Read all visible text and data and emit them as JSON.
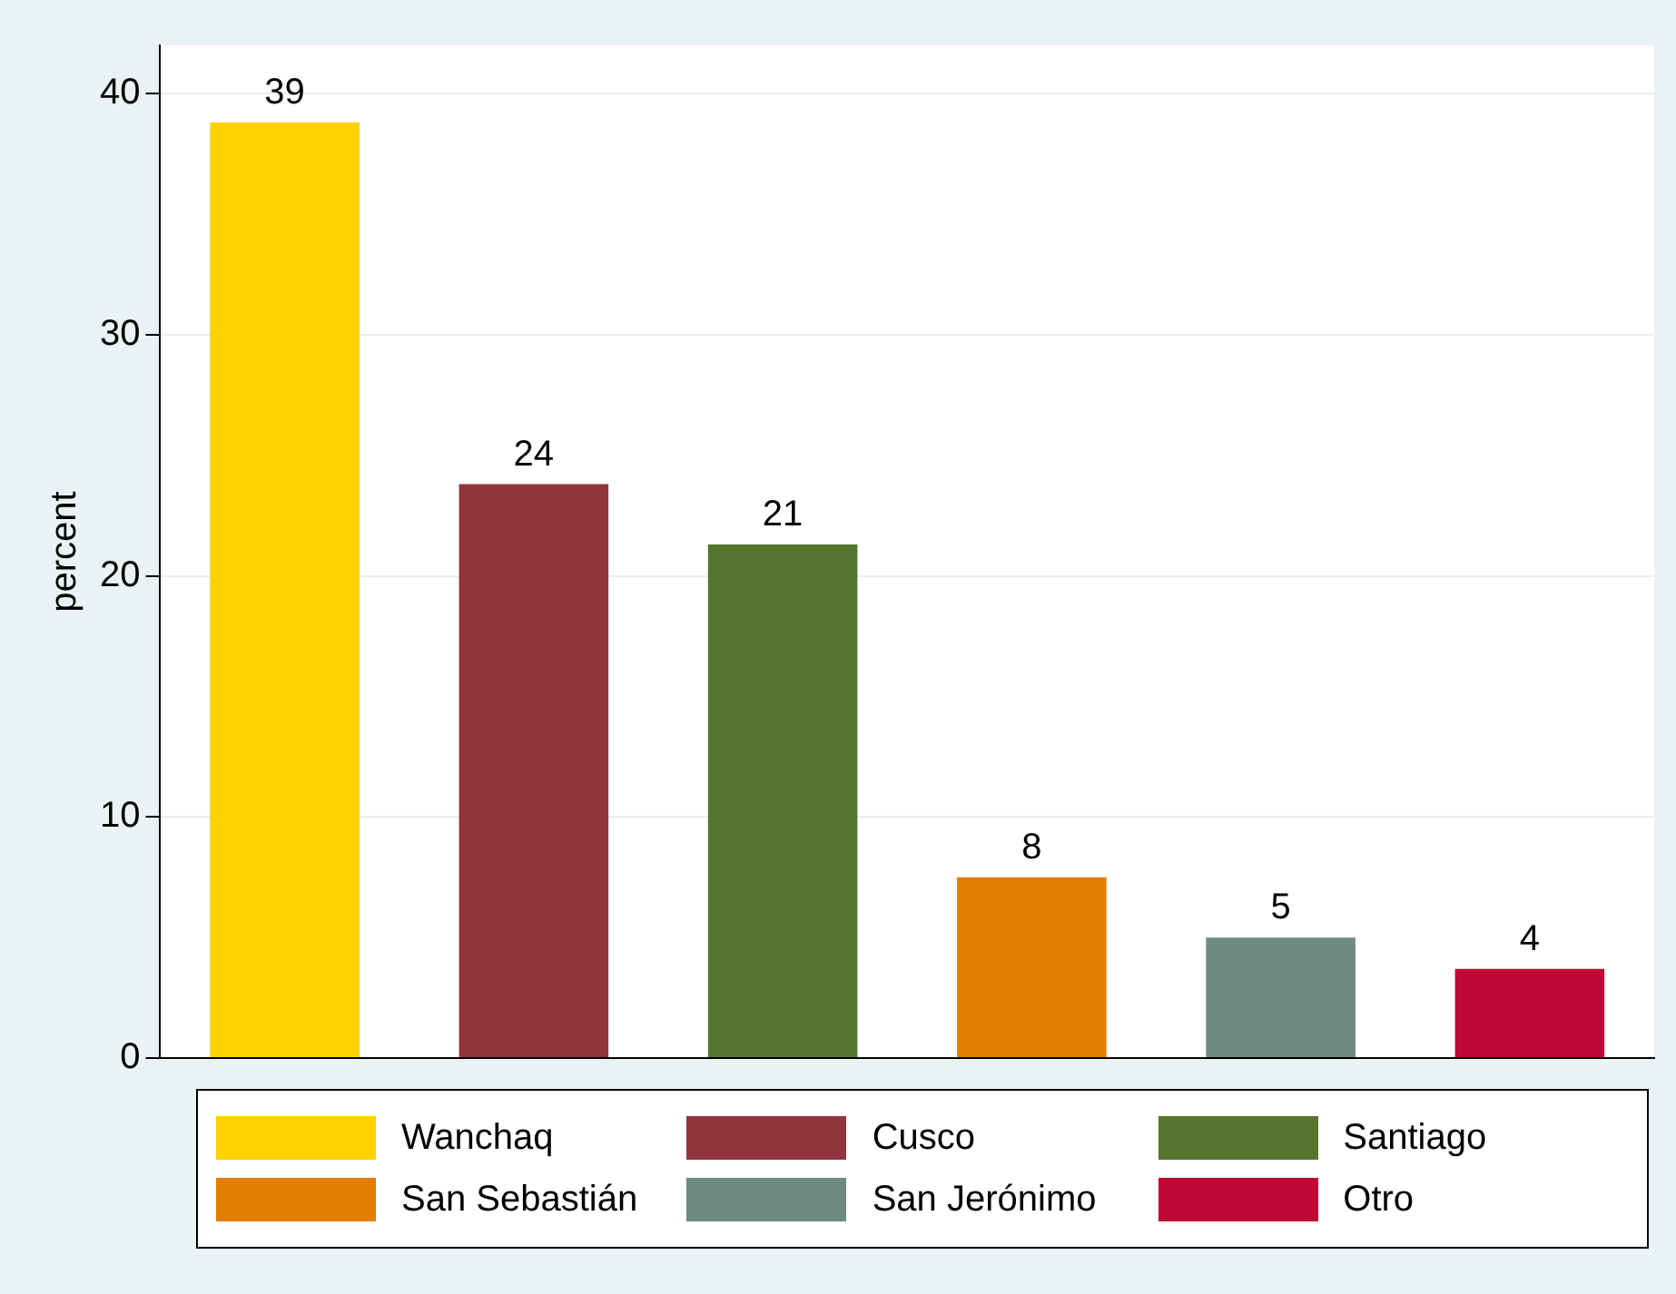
{
  "chart_data": {
    "type": "bar",
    "ylabel": "percent",
    "categories": [
      null,
      null,
      null,
      null,
      null,
      null
    ],
    "series": [
      {
        "name": "Wanchaq",
        "color": "#ffd000",
        "values": [
          38.8,
          null,
          null,
          null,
          null,
          null
        ],
        "value_labels": [
          "39",
          null,
          null,
          null,
          null,
          null
        ]
      },
      {
        "name": "Cusco",
        "color": "#90353b",
        "values": [
          null,
          23.8,
          null,
          null,
          null,
          null
        ],
        "value_labels": [
          null,
          "24",
          null,
          null,
          null,
          null
        ]
      },
      {
        "name": "Santiago",
        "color": "#55752f",
        "values": [
          null,
          null,
          21.3,
          null,
          null,
          null
        ],
        "value_labels": [
          null,
          null,
          "21",
          null,
          null,
          null
        ]
      },
      {
        "name": "San Sebastián",
        "color": "#e37e00",
        "values": [
          null,
          null,
          null,
          7.5,
          null,
          null
        ],
        "value_labels": [
          null,
          null,
          null,
          "8",
          null,
          null
        ]
      },
      {
        "name": "San Jerónimo",
        "color": "#6d8b7e",
        "values": [
          null,
          null,
          null,
          null,
          5.0,
          null
        ],
        "value_labels": [
          null,
          null,
          null,
          null,
          "5",
          null
        ]
      },
      {
        "name": "Otro",
        "color": "#c10534",
        "values": [
          null,
          null,
          null,
          null,
          null,
          3.7
        ],
        "value_labels": [
          null,
          null,
          null,
          null,
          null,
          "4"
        ]
      }
    ],
    "ylim": [
      0,
      42
    ],
    "yticks": [
      0,
      10,
      20,
      30,
      40
    ],
    "grid": "y",
    "legend": "bottom",
    "tick_labels": "y"
  }
}
